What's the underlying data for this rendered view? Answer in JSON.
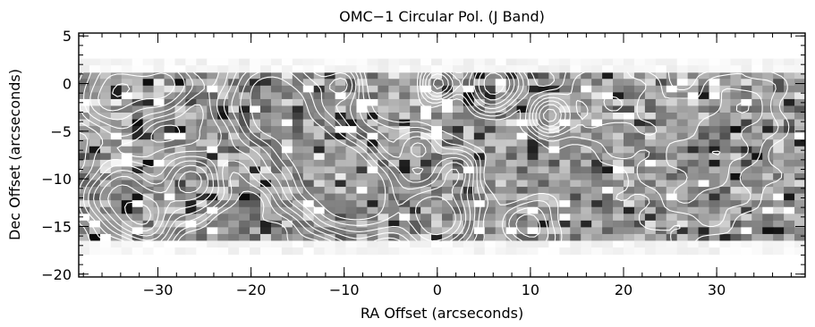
{
  "chart_data": {
    "type": "heatmap",
    "title": "OMC−1 Circular Pol. (J Band)",
    "xlabel": "RA Offset (arcseconds)",
    "ylabel": "Dec Offset (arcseconds)",
    "xlim": [
      -38.5,
      39.5
    ],
    "ylim": [
      -20.3,
      5.3
    ],
    "x_major_ticks": [
      -30,
      -20,
      -10,
      0,
      10,
      20,
      30
    ],
    "x_tick_labels": [
      "−30",
      "−20",
      "−10",
      "0",
      "10",
      "20",
      "30"
    ],
    "y_major_ticks": [
      5,
      0,
      -5,
      -10,
      -15,
      -20
    ],
    "y_tick_labels": [
      "5",
      "0",
      "−5",
      "−10",
      "−15",
      "−20"
    ],
    "x_minor_step": 2,
    "y_minor_step": 1,
    "data_region": {
      "x": [
        -38.5,
        39.5
      ],
      "y": [
        -16.5,
        1.2
      ]
    },
    "pixel_grid": {
      "cols": 68,
      "rows": 25,
      "seed": 7
    },
    "colormap": "grayscale",
    "overlay": "white intensity contours",
    "contour_peaks": [
      {
        "x": -34.0,
        "y": -12.0,
        "amp": 1.0,
        "sigma": 2.5
      },
      {
        "x": -31.0,
        "y": -14.5,
        "amp": 0.8,
        "sigma": 1.8
      },
      {
        "x": -26.5,
        "y": -10.5,
        "amp": 1.0,
        "sigma": 2.2
      },
      {
        "x": -34.5,
        "y": -1.0,
        "amp": 0.9,
        "sigma": 2.8
      },
      {
        "x": -29.0,
        "y": 0.0,
        "amp": 0.7,
        "sigma": 2.0
      },
      {
        "x": -17.5,
        "y": -2.0,
        "amp": 1.4,
        "sigma": 3.8
      },
      {
        "x": -12.0,
        "y": -9.0,
        "amp": 1.3,
        "sigma": 3.5
      },
      {
        "x": -8.0,
        "y": -12.0,
        "amp": 1.2,
        "sigma": 3.0
      },
      {
        "x": -10.0,
        "y": 0.0,
        "amp": 0.6,
        "sigma": 1.2
      },
      {
        "x": 0.0,
        "y": -14.0,
        "amp": 1.4,
        "sigma": 2.6
      },
      {
        "x": 2.0,
        "y": -9.0,
        "amp": 0.7,
        "sigma": 1.6
      },
      {
        "x": -2.0,
        "y": -6.5,
        "amp": 0.5,
        "sigma": 1.5
      },
      {
        "x": 0.0,
        "y": 0.0,
        "amp": 0.8,
        "sigma": 1.2
      },
      {
        "x": 6.0,
        "y": 0.0,
        "amp": 1.1,
        "sigma": 1.8
      },
      {
        "x": 12.0,
        "y": -3.5,
        "amp": 0.9,
        "sigma": 1.3
      },
      {
        "x": 10.0,
        "y": -15.0,
        "amp": 0.5,
        "sigma": 2.0
      },
      {
        "x": 18.0,
        "y": -1.0,
        "amp": 0.4,
        "sigma": 4.0
      },
      {
        "x": 28.0,
        "y": -9.0,
        "amp": 0.35,
        "sigma": 5.0
      },
      {
        "x": 33.0,
        "y": -2.0,
        "amp": 0.3,
        "sigma": 3.0
      }
    ],
    "contour_levels": [
      0.12,
      0.2,
      0.3,
      0.42,
      0.56,
      0.72,
      0.9,
      1.1
    ],
    "contour_color": "#ffffff"
  }
}
